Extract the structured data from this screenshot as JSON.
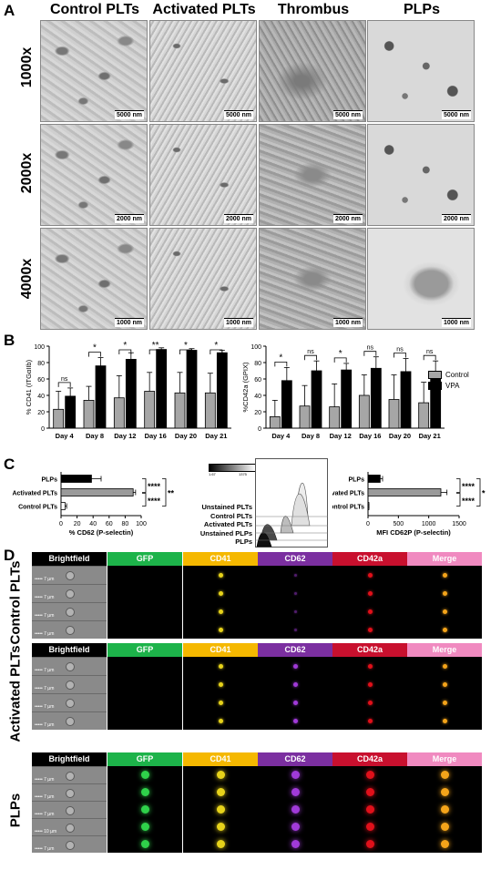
{
  "panel_letters": {
    "a": "A",
    "b": "B",
    "c": "C",
    "d": "D"
  },
  "panel_a": {
    "columns": [
      "Control PLTs",
      "Activated PLTs",
      "Thrombus",
      "PLPs"
    ],
    "rows": [
      "1000x",
      "2000x",
      "4000x"
    ],
    "scales": [
      "5000 nm",
      "2000 nm",
      "1000 nm"
    ]
  },
  "panel_b": {
    "legend": [
      "Control",
      "VPA"
    ],
    "colors": {
      "control": "#a6a6a6",
      "vpa": "#000000"
    }
  },
  "chart_data": [
    {
      "type": "bar",
      "ylabel": "% CD41 (ITGαIIb)",
      "ylim": [
        0,
        100
      ],
      "yticks": [
        "0",
        "20",
        "40",
        "60",
        "80",
        "100"
      ],
      "categories": [
        "Day 4",
        "Day 8",
        "Day 12",
        "Day 16",
        "Day 20",
        "Day 21"
      ],
      "series": [
        {
          "name": "Control",
          "values": [
            23,
            34,
            37,
            45,
            43,
            43
          ],
          "errors": [
            22,
            17,
            27,
            23,
            25,
            24
          ]
        },
        {
          "name": "VPA",
          "values": [
            39,
            76,
            84,
            96,
            95,
            92
          ],
          "errors": [
            10,
            10,
            8,
            2,
            2,
            3
          ]
        }
      ],
      "significance": [
        "ns",
        "*",
        "*",
        "**",
        "*",
        "*"
      ]
    },
    {
      "type": "bar",
      "ylabel": "%CD42a (GPIX)",
      "ylim": [
        0,
        100
      ],
      "yticks": [
        "0",
        "20",
        "40",
        "60",
        "80",
        "100"
      ],
      "categories": [
        "Day 4",
        "Day 8",
        "Day 12",
        "Day 16",
        "Day 20",
        "Day 21"
      ],
      "series": [
        {
          "name": "Control",
          "values": [
            14,
            27,
            26,
            40,
            35,
            31
          ],
          "errors": [
            20,
            25,
            28,
            25,
            30,
            25
          ]
        },
        {
          "name": "VPA",
          "values": [
            58,
            70,
            71,
            73,
            69,
            68
          ],
          "errors": [
            16,
            12,
            8,
            14,
            16,
            14
          ]
        }
      ],
      "significance": [
        "*",
        "ns",
        "*",
        "ns",
        "ns",
        "ns"
      ]
    },
    {
      "type": "bar",
      "orientation": "horizontal",
      "xlabel": "% CD62 (P-selectin)",
      "xlim": [
        0,
        100
      ],
      "xticks": [
        "0",
        "20",
        "40",
        "60",
        "80",
        "100"
      ],
      "categories": [
        "PLPs",
        "Activated PLTs",
        "Control PLTs"
      ],
      "values": [
        38,
        90,
        5
      ],
      "errors": [
        12,
        3,
        2
      ],
      "fills": [
        "#000000",
        "#9a9a9a",
        "#ffffff"
      ],
      "significance": [
        "****",
        "****",
        "**"
      ]
    },
    {
      "type": "bar",
      "orientation": "horizontal",
      "xlabel": "MFI CD62P (P-selectin)",
      "xlim": [
        0,
        1500
      ],
      "xticks": [
        "0",
        "500",
        "1000",
        "1500"
      ],
      "categories": [
        "PLPs",
        "Activated PLTs",
        "Control PLTs"
      ],
      "values": [
        200,
        1200,
        10
      ],
      "errors": [
        40,
        100,
        5
      ],
      "fills": [
        "#000000",
        "#9a9a9a",
        "#ffffff"
      ],
      "significance": [
        "****",
        "****",
        "*"
      ]
    }
  ],
  "histogram": {
    "scale_min": "1.67",
    "scale_max": "1375",
    "labels": [
      "Unstained PLTs",
      "Control PLTs",
      "Activated PLTs",
      "Unstained PLPs",
      "PLPs"
    ]
  },
  "panel_d": {
    "channels": [
      "Brightfield",
      "GFP",
      "CD41",
      "CD62",
      "CD42a",
      "Merge"
    ],
    "channel_colors": [
      "#000000",
      "#1db34a",
      "#f5b800",
      "#7b2fa0",
      "#c8102e",
      "#f08ac0"
    ],
    "groups": [
      "Control PLTs",
      "Activated PLTs",
      "PLPs"
    ],
    "scale_label": "7 µm",
    "scale_label_alt": "10 µm"
  }
}
